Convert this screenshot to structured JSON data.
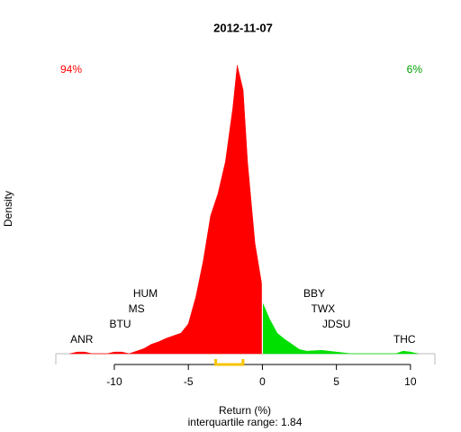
{
  "chart_data": {
    "type": "density",
    "title": "2012-11-07",
    "x_label": "Return (%)",
    "subtitle": "interquartile range: 1.84",
    "y_label": "Density",
    "xlim": [
      -13.95,
      11.65
    ],
    "ylim": [
      0,
      0.35
    ],
    "xticks": [
      -10,
      -5,
      0,
      5,
      10
    ],
    "areas": [
      {
        "color": "#ff0000",
        "x": [
          -13,
          -12.5,
          -12,
          -11.5,
          -10.5,
          -10,
          -9.5,
          -9,
          -8.5,
          -8,
          -7.5,
          -7,
          -6.5,
          -6,
          -5.5,
          -5,
          -4.5,
          -4,
          -3.5,
          -3,
          -2.5,
          -2,
          -1.7,
          -1.3,
          -1,
          -0.5,
          0
        ],
        "values": [
          0,
          0.002,
          0.002,
          0,
          0,
          0.002,
          0.002,
          0,
          0.003,
          0.006,
          0.011,
          0.014,
          0.018,
          0.021,
          0.024,
          0.035,
          0.066,
          0.108,
          0.161,
          0.187,
          0.224,
          0.287,
          0.337,
          0.308,
          0.224,
          0.129,
          0.077
        ]
      },
      {
        "color": "#00e000",
        "x": [
          0,
          0.5,
          1,
          1.5,
          2,
          2.5,
          3,
          4,
          5,
          6,
          9,
          9.5,
          10,
          10.5
        ],
        "values": [
          0.06,
          0.04,
          0.024,
          0.017,
          0.011,
          0.005,
          0.003,
          0.004,
          0.002,
          0,
          0,
          0.003,
          0.002,
          0
        ]
      }
    ],
    "shares": [
      {
        "label": "94%",
        "color": "#ff0000",
        "corner": "top-left"
      },
      {
        "label": "6%",
        "color": "#00a000",
        "corner": "top-right"
      }
    ],
    "iqr": {
      "range": [
        -3.15,
        -1.31
      ],
      "color": "#f5c400"
    },
    "annotations": [
      {
        "text": "ANR",
        "x": -12.2,
        "y": 0.0158
      },
      {
        "text": "BTU",
        "x": -9.6,
        "y": 0.0336
      },
      {
        "text": "MS",
        "x": -8.5,
        "y": 0.0515
      },
      {
        "text": "HUM",
        "x": -7.9,
        "y": 0.0693
      },
      {
        "text": "BBY",
        "x": 3.5,
        "y": 0.0693
      },
      {
        "text": "TWX",
        "x": 4.1,
        "y": 0.0515
      },
      {
        "text": "JDSU",
        "x": 5,
        "y": 0.0336
      },
      {
        "text": "THC",
        "x": 9.6,
        "y": 0.0158
      }
    ]
  }
}
